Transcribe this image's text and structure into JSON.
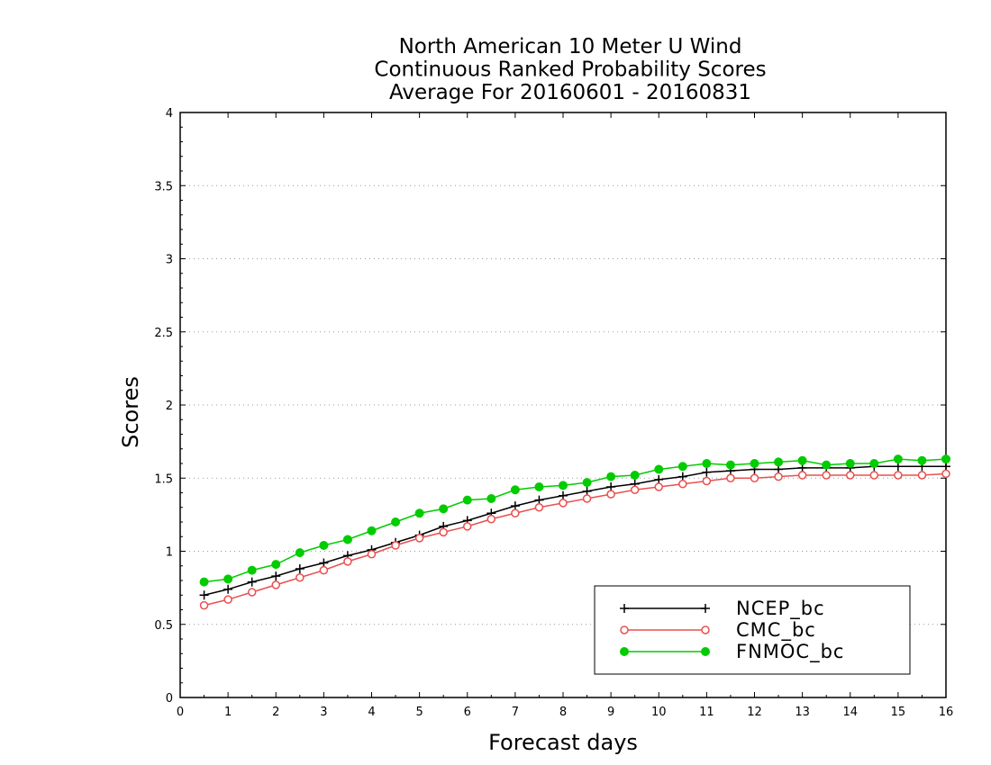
{
  "chart_data": {
    "type": "line",
    "title": [
      "North American 10 Meter U Wind",
      "Continuous Ranked Probability Scores",
      "Average For 20160601 - 20160831"
    ],
    "xlabel": "Forecast days",
    "ylabel": "Scores",
    "xlim": [
      0,
      16
    ],
    "ylim": [
      0,
      4
    ],
    "xticks": [
      "0",
      "1",
      "2",
      "3",
      "4",
      "5",
      "6",
      "7",
      "8",
      "9",
      "10",
      "11",
      "12",
      "13",
      "14",
      "15",
      "16"
    ],
    "yticks": [
      "0",
      "0.5",
      "1",
      "1.5",
      "2",
      "2.5",
      "3",
      "3.5",
      "4"
    ],
    "grid": "horizontal dotted",
    "legend_position": "bottom-right",
    "x": [
      0.5,
      1,
      1.5,
      2,
      2.5,
      3,
      3.5,
      4,
      4.5,
      5,
      5.5,
      6,
      6.5,
      7,
      7.5,
      8,
      8.5,
      9,
      9.5,
      10,
      10.5,
      11,
      11.5,
      12,
      12.5,
      13,
      13.5,
      14,
      14.5,
      15,
      15.5,
      16
    ],
    "series": [
      {
        "name": "NCEP_bc",
        "color": "#000000",
        "marker": "plus",
        "values": [
          0.7,
          0.74,
          0.79,
          0.83,
          0.88,
          0.92,
          0.97,
          1.01,
          1.06,
          1.11,
          1.17,
          1.21,
          1.26,
          1.31,
          1.35,
          1.38,
          1.41,
          1.44,
          1.46,
          1.49,
          1.51,
          1.54,
          1.55,
          1.56,
          1.56,
          1.57,
          1.57,
          1.57,
          1.58,
          1.58,
          1.58,
          1.58
        ]
      },
      {
        "name": "CMC_bc",
        "color": "#e8504f",
        "marker": "open-circle",
        "values": [
          0.63,
          0.67,
          0.72,
          0.77,
          0.82,
          0.87,
          0.93,
          0.98,
          1.04,
          1.09,
          1.13,
          1.17,
          1.22,
          1.26,
          1.3,
          1.33,
          1.36,
          1.39,
          1.42,
          1.44,
          1.46,
          1.48,
          1.5,
          1.5,
          1.51,
          1.52,
          1.52,
          1.52,
          1.52,
          1.52,
          1.52,
          1.53
        ]
      },
      {
        "name": "FNMOC_bc",
        "color": "#00cc00",
        "marker": "filled-circle",
        "values": [
          0.79,
          0.81,
          0.87,
          0.91,
          0.99,
          1.04,
          1.08,
          1.14,
          1.2,
          1.26,
          1.29,
          1.35,
          1.36,
          1.42,
          1.44,
          1.45,
          1.47,
          1.51,
          1.52,
          1.56,
          1.58,
          1.6,
          1.59,
          1.6,
          1.61,
          1.62,
          1.59,
          1.6,
          1.6,
          1.63,
          1.62,
          1.63
        ]
      }
    ]
  }
}
